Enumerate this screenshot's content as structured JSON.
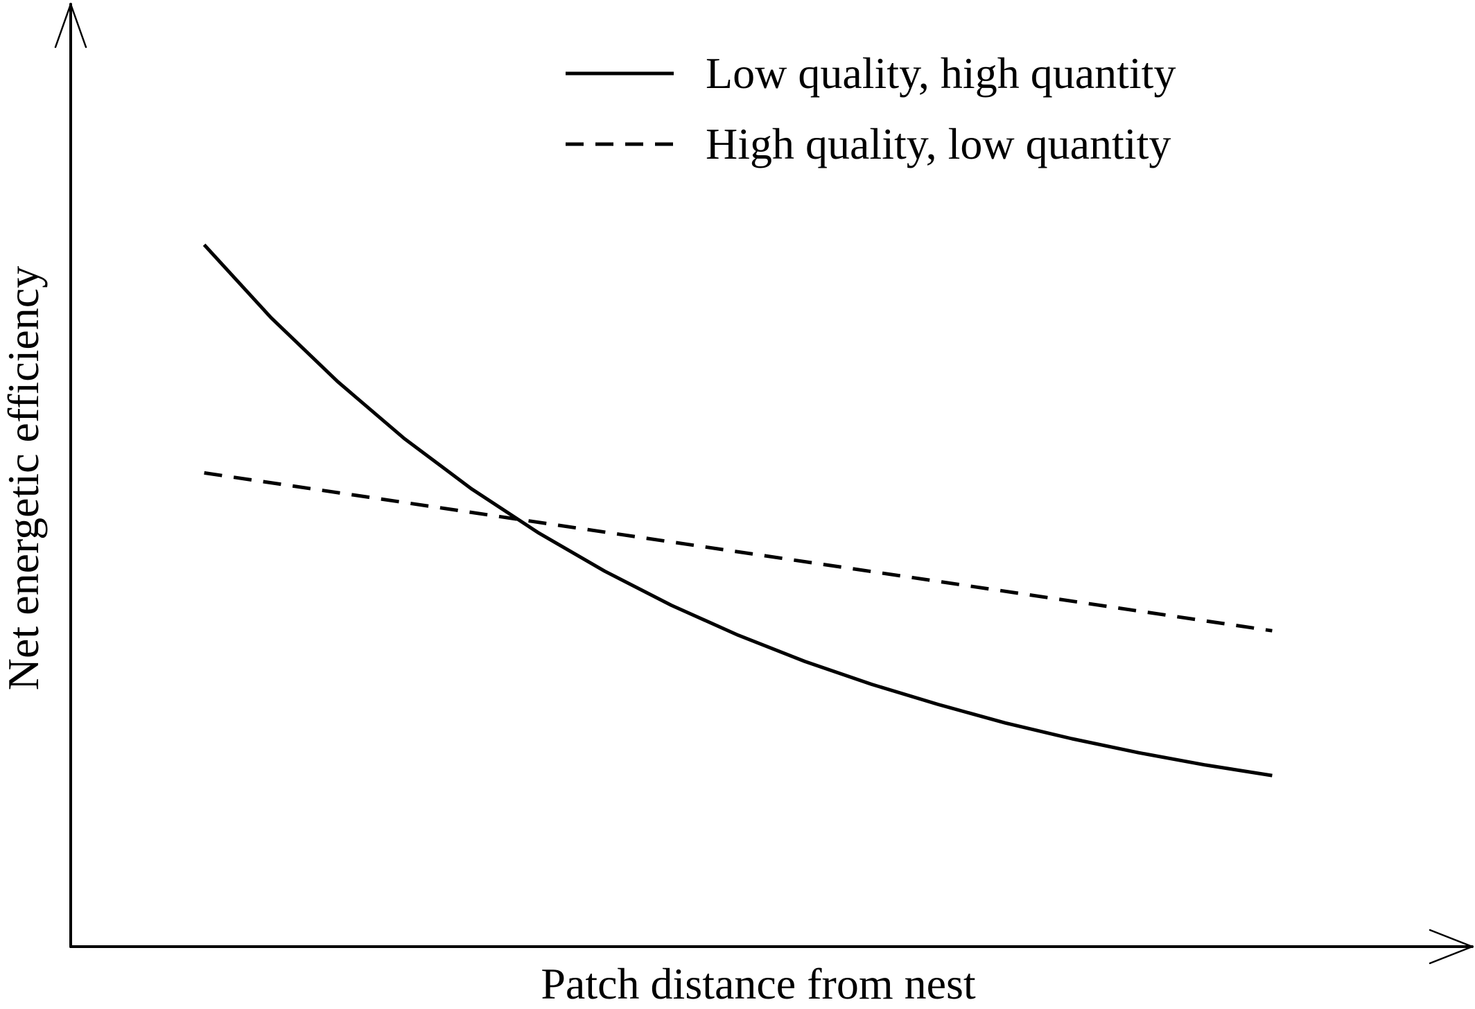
{
  "chart_data": {
    "type": "line",
    "title": "",
    "xlabel": "Patch distance from nest",
    "ylabel": "Net energetic efficiency",
    "xlim": [
      0,
      10
    ],
    "ylim": [
      0,
      10
    ],
    "grid": false,
    "ticks": false,
    "legend_position": "top-right",
    "series": [
      {
        "name": "Low quality, high quantity",
        "style": "solid",
        "color": "#000000",
        "x": [
          1.0,
          1.5,
          2.0,
          2.5,
          3.0,
          3.5,
          4.0,
          4.5,
          5.0,
          5.5,
          6.0,
          6.5,
          7.0,
          7.5,
          8.0,
          8.5,
          9.0
        ],
        "y": [
          8.0,
          7.17,
          6.44,
          5.79,
          5.22,
          4.72,
          4.28,
          3.89,
          3.55,
          3.25,
          2.99,
          2.76,
          2.55,
          2.37,
          2.21,
          2.07,
          1.95
        ]
      },
      {
        "name": "High quality, low quantity",
        "style": "dashed",
        "color": "#000000",
        "x": [
          1.0,
          9.0
        ],
        "y": [
          5.4,
          3.6
        ]
      }
    ]
  }
}
